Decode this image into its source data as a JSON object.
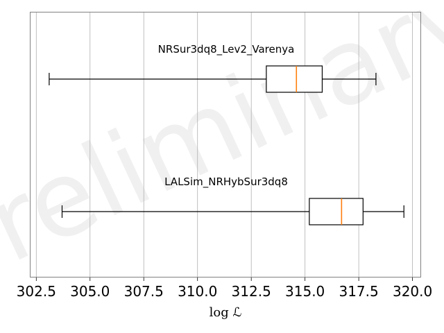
{
  "chart_data": {
    "type": "box",
    "orientation": "horizontal",
    "xlabel": "log ℒ",
    "xlim": [
      302.2,
      320.4
    ],
    "xticks": [
      302.5,
      305.0,
      307.5,
      310.0,
      312.5,
      315.0,
      317.5,
      320.0
    ],
    "xtick_labels": [
      "302.5",
      "305.0",
      "307.5",
      "310.0",
      "312.5",
      "315.0",
      "317.5",
      "320.0"
    ],
    "grid": "vertical",
    "watermark": "Preliminary",
    "series": [
      {
        "name": "NRSur3dq8_Lev2_Varenya",
        "whisker_low": 303.1,
        "q1": 313.2,
        "median": 314.6,
        "q3": 315.8,
        "whisker_high": 318.3
      },
      {
        "name": "LALSim_NRHybSur3dq8",
        "whisker_low": 303.7,
        "q1": 315.2,
        "median": 316.7,
        "q3": 317.7,
        "whisker_high": 319.6
      }
    ],
    "colors": {
      "box": "#000000",
      "median": "#ff7f0e",
      "grid": "#b0b0b0",
      "frame": "#000000"
    }
  }
}
